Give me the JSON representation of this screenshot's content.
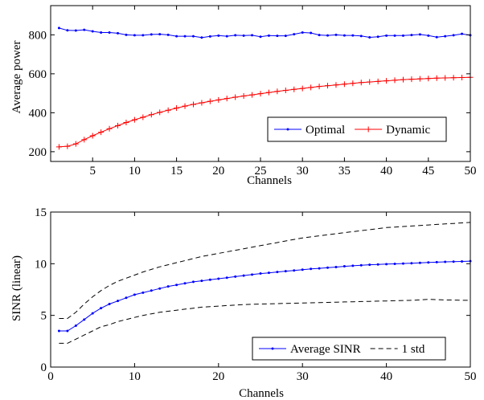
{
  "chart_data": [
    {
      "type": "line",
      "xlabel": "Channels",
      "ylabel": "Average power",
      "xlim": [
        0,
        50
      ],
      "ylim": [
        150,
        950
      ],
      "xticks": [
        5,
        10,
        15,
        20,
        25,
        30,
        35,
        40,
        45,
        50
      ],
      "yticks": [
        200,
        400,
        600,
        800
      ],
      "grid": false,
      "legend_position": "bottom-right",
      "x": [
        1,
        2,
        3,
        4,
        5,
        6,
        7,
        8,
        9,
        10,
        11,
        12,
        13,
        14,
        15,
        16,
        17,
        18,
        19,
        20,
        21,
        22,
        23,
        24,
        25,
        26,
        27,
        28,
        29,
        30,
        31,
        32,
        33,
        34,
        35,
        36,
        37,
        38,
        39,
        40,
        41,
        42,
        43,
        44,
        45,
        46,
        47,
        48,
        49,
        50
      ],
      "series": [
        {
          "name": "Optimal",
          "color": "#0000ff",
          "marker": "dot",
          "values": [
            835,
            823,
            822,
            826,
            818,
            812,
            812,
            808,
            800,
            798,
            798,
            802,
            803,
            800,
            793,
            793,
            793,
            786,
            792,
            796,
            793,
            798,
            796,
            798,
            790,
            796,
            795,
            795,
            803,
            812,
            810,
            799,
            797,
            800,
            797,
            797,
            794,
            787,
            790,
            796,
            796,
            796,
            799,
            802,
            796,
            788,
            793,
            798,
            805,
            798
          ]
        },
        {
          "name": "Dynamic",
          "color": "#ff0000",
          "marker": "plus",
          "values": [
            225,
            228,
            240,
            262,
            282,
            300,
            318,
            334,
            350,
            364,
            377,
            390,
            402,
            413,
            424,
            434,
            443,
            451,
            459,
            466,
            473,
            480,
            486,
            492,
            498,
            504,
            510,
            515,
            520,
            525,
            530,
            535,
            539,
            543,
            547,
            551,
            555,
            558,
            561,
            564,
            567,
            570,
            572,
            574,
            576,
            578,
            579,
            580,
            581,
            582
          ]
        }
      ]
    },
    {
      "type": "line",
      "xlabel": "Channels",
      "ylabel": "SINR (linear)",
      "xlim": [
        0,
        50
      ],
      "ylim": [
        0,
        15
      ],
      "xticks": [
        0,
        10,
        20,
        30,
        40,
        50
      ],
      "yticks": [
        0,
        5,
        10,
        15
      ],
      "grid": false,
      "legend_position": "bottom-right",
      "x": [
        1,
        2,
        3,
        4,
        5,
        6,
        7,
        8,
        9,
        10,
        11,
        12,
        13,
        14,
        15,
        16,
        17,
        18,
        19,
        20,
        21,
        22,
        23,
        24,
        25,
        26,
        27,
        28,
        29,
        30,
        31,
        32,
        33,
        34,
        35,
        36,
        37,
        38,
        39,
        40,
        41,
        42,
        43,
        44,
        45,
        46,
        47,
        48,
        49,
        50
      ],
      "series": [
        {
          "name": "Average SINR",
          "color": "#0000ff",
          "style": "solid",
          "marker": "dot",
          "values": [
            3.5,
            3.5,
            4.0,
            4.6,
            5.2,
            5.7,
            6.1,
            6.4,
            6.7,
            7.0,
            7.2,
            7.4,
            7.6,
            7.8,
            7.95,
            8.1,
            8.25,
            8.35,
            8.45,
            8.55,
            8.65,
            8.75,
            8.85,
            8.95,
            9.05,
            9.12,
            9.2,
            9.28,
            9.35,
            9.42,
            9.5,
            9.55,
            9.62,
            9.68,
            9.75,
            9.8,
            9.85,
            9.9,
            9.93,
            9.96,
            9.99,
            10.02,
            10.05,
            10.08,
            10.12,
            10.15,
            10.18,
            10.2,
            10.22,
            10.25
          ]
        },
        {
          "name": "1 std",
          "color": "#000000",
          "style": "dashed",
          "upper": [
            4.7,
            4.7,
            5.3,
            6.1,
            6.8,
            7.4,
            7.9,
            8.3,
            8.6,
            8.9,
            9.2,
            9.45,
            9.7,
            9.9,
            10.1,
            10.3,
            10.5,
            10.7,
            10.85,
            11.0,
            11.15,
            11.3,
            11.45,
            11.6,
            11.75,
            11.9,
            12.05,
            12.2,
            12.35,
            12.5,
            12.6,
            12.7,
            12.8,
            12.9,
            13.0,
            13.1,
            13.2,
            13.3,
            13.4,
            13.5,
            13.55,
            13.6,
            13.65,
            13.7,
            13.75,
            13.8,
            13.85,
            13.9,
            13.95,
            14.0
          ],
          "lower": [
            2.3,
            2.3,
            2.7,
            3.1,
            3.5,
            3.9,
            4.1,
            4.4,
            4.6,
            4.8,
            5.0,
            5.15,
            5.3,
            5.4,
            5.5,
            5.6,
            5.7,
            5.8,
            5.85,
            5.9,
            5.95,
            6.0,
            6.05,
            6.08,
            6.1,
            6.12,
            6.14,
            6.16,
            6.18,
            6.2,
            6.22,
            6.24,
            6.26,
            6.28,
            6.3,
            6.32,
            6.34,
            6.36,
            6.38,
            6.4,
            6.42,
            6.44,
            6.46,
            6.5,
            6.55,
            6.52,
            6.5,
            6.48,
            6.47,
            6.45
          ]
        }
      ]
    }
  ]
}
